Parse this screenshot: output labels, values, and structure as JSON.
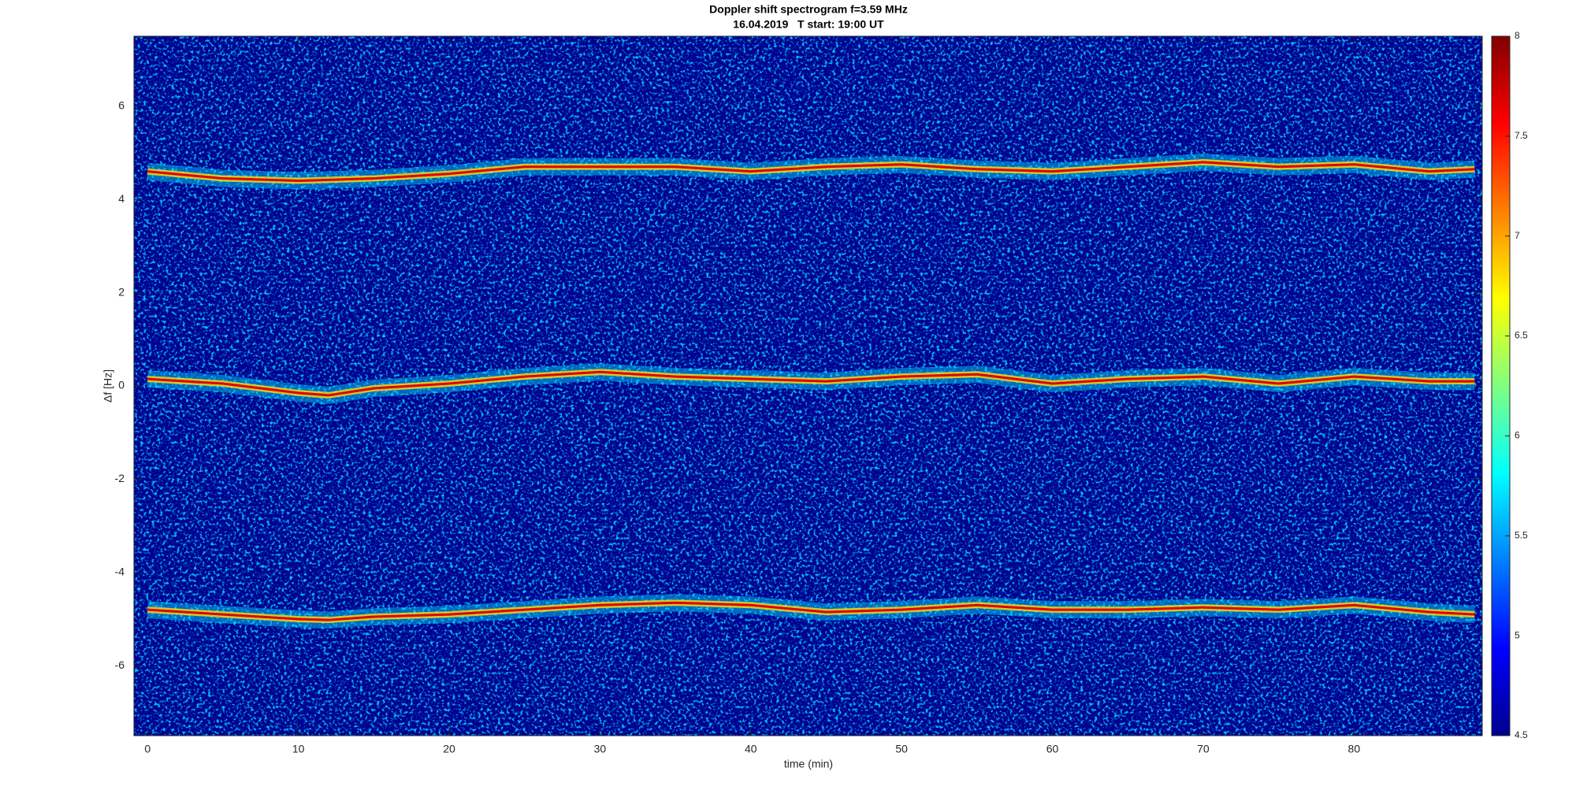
{
  "chart_data": {
    "type": "spectrogram",
    "title": "Doppler shift spectrogram f=3.59 MHz",
    "subtitle": "16.04.2019   T start: 19:00 UT",
    "xlabel": "time (min)",
    "ylabel": "Δf [Hz]",
    "xlim": [
      -0.9,
      88.5
    ],
    "xticks": [
      0,
      10,
      20,
      30,
      40,
      50,
      60,
      70,
      80
    ],
    "ylim": [
      -7.5,
      7.5
    ],
    "yticks": [
      -6,
      -4,
      -2,
      0,
      2,
      4,
      6
    ],
    "colorbar": {
      "lim": [
        4.5,
        8
      ],
      "ticks": [
        4.5,
        5,
        5.5,
        6,
        6.5,
        7,
        7.5,
        8
      ]
    },
    "x": [
      0,
      5,
      10,
      12,
      15,
      20,
      25,
      30,
      35,
      40,
      45,
      50,
      55,
      60,
      65,
      70,
      75,
      80,
      85,
      88
    ],
    "series": [
      {
        "color": "#e00000",
        "values": [
          4.6,
          4.45,
          4.4,
          4.42,
          4.45,
          4.55,
          4.7,
          4.7,
          4.7,
          4.6,
          4.7,
          4.75,
          4.65,
          4.6,
          4.7,
          4.8,
          4.7,
          4.75,
          4.6,
          4.65
        ]
      },
      {
        "color": "#e00000",
        "values": [
          0.15,
          0.05,
          -0.15,
          -0.2,
          -0.05,
          0.05,
          0.2,
          0.3,
          0.2,
          0.15,
          0.1,
          0.2,
          0.25,
          0.05,
          0.15,
          0.2,
          0.05,
          0.2,
          0.1,
          0.1
        ]
      },
      {
        "color": "#e00000",
        "values": [
          -4.8,
          -4.9,
          -5.0,
          -5.02,
          -4.95,
          -4.9,
          -4.8,
          -4.7,
          -4.65,
          -4.7,
          -4.85,
          -4.8,
          -4.7,
          -4.8,
          -4.8,
          -4.75,
          -4.8,
          -4.7,
          -4.85,
          -4.9
        ]
      }
    ]
  }
}
